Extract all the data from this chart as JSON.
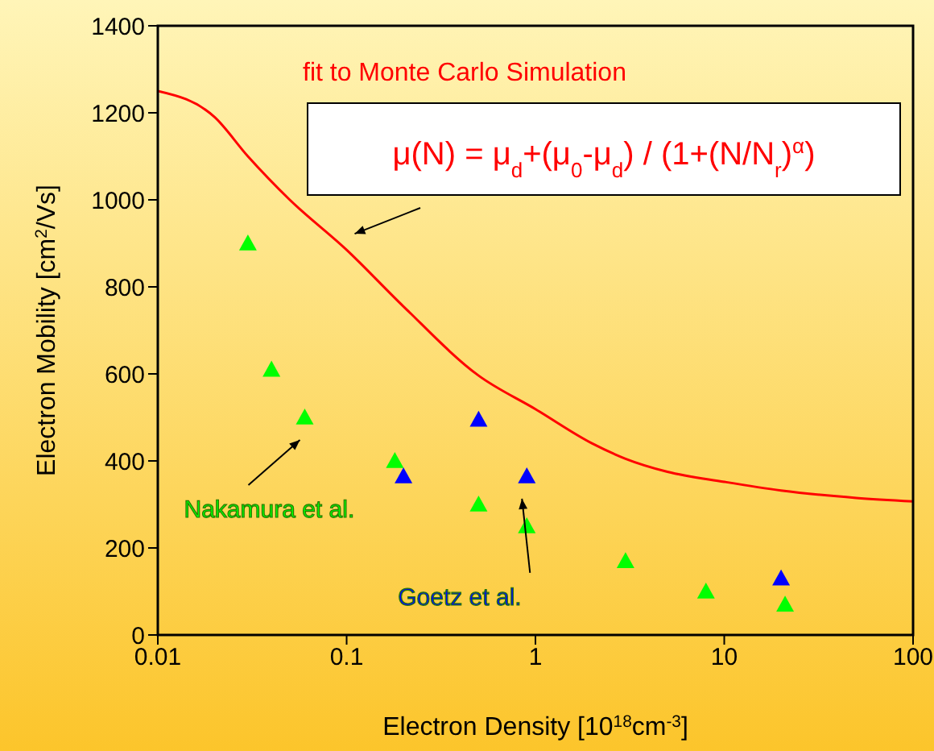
{
  "chart_data": {
    "type": "scatter",
    "xlabel": "Electron Density [10$^{18}$cm$^{-3}$]",
    "ylabel": "Electron Mobility [cm$^{2}$/Vs]",
    "log": "x",
    "xlim": [
      0.01,
      100
    ],
    "xticks": [
      0.01,
      0.1,
      1,
      10,
      100
    ],
    "ylim": [
      0,
      1400
    ],
    "yticks": [
      0,
      200,
      400,
      600,
      800,
      1000,
      1200,
      1400
    ],
    "grid": false,
    "legend": false,
    "series": [
      {
        "type": "line",
        "color": "#ff0000",
        "line_style": "solid",
        "marker": "none",
        "x": [
          0.01,
          0.02,
          0.03,
          0.05,
          0.1,
          0.2,
          0.5,
          1,
          2,
          3,
          5,
          10,
          20,
          50,
          100
        ],
        "values": [
          1250,
          1190,
          1100,
          1000,
          885,
          755,
          596,
          519,
          440,
          405,
          375,
          352,
          332,
          315,
          307
        ]
      },
      {
        "name": "Nakamura et al.",
        "color": "#00ff00",
        "marker": "triangle",
        "x": [
          0.03,
          0.04,
          0.06,
          0.18,
          0.5,
          0.9,
          3,
          8,
          21
        ],
        "values": [
          900,
          610,
          500,
          400,
          300,
          250,
          170,
          100,
          70
        ]
      },
      {
        "name": "Goetz et al.",
        "color": "#0000ff",
        "marker": "triangle",
        "x": [
          0.2,
          0.5,
          0.9,
          20
        ],
        "values": [
          365,
          495,
          365,
          130
        ]
      }
    ],
    "annotations": [
      "fit to Monte Carlo Simulation",
      "μ(N) = μ$_{d}$+(μ$_{0}$-μ$_{d}$) / (1+(N/N$_{r}$)$^{α}$)"
    ]
  }
}
